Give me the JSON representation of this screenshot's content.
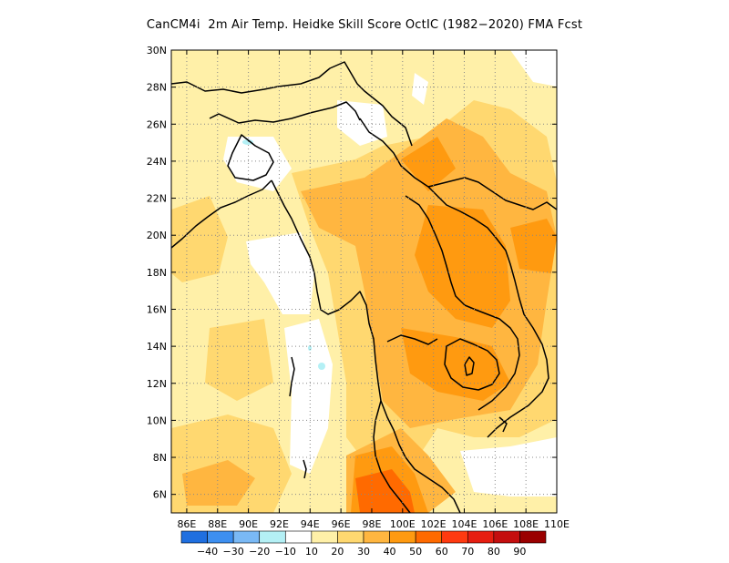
{
  "title": "CanCM4i  2m Air Temp. Heidke Skill Score OctIC (1982−2020) FMA Fcst",
  "map": {
    "lon_range": [
      85,
      110
    ],
    "lat_range": [
      5,
      30
    ],
    "x_ticks": [
      "86E",
      "88E",
      "90E",
      "92E",
      "94E",
      "96E",
      "98E",
      "100E",
      "102E",
      "104E",
      "106E",
      "108E",
      "110E"
    ],
    "y_ticks": [
      "30N",
      "28N",
      "26N",
      "24N",
      "22N",
      "20N",
      "18N",
      "16N",
      "14N",
      "12N",
      "10N",
      "8N",
      "6N"
    ],
    "gridlines": "dotted"
  },
  "colorbar": {
    "colors": [
      "#1f6fe0",
      "#3d8ff0",
      "#7ab9f5",
      "#b4f0f5",
      "#ffffff",
      "#fff0a8",
      "#ffd870",
      "#ffb640",
      "#ff9a10",
      "#ff6a00",
      "#ff3a10",
      "#e61e10",
      "#c40e0e",
      "#9a0000"
    ],
    "labels": [
      "−40",
      "−30",
      "−20",
      "−10",
      "10",
      "20",
      "30",
      "40",
      "50",
      "60",
      "70",
      "80",
      "90"
    ]
  },
  "colors": {
    "light": "#fff0a8",
    "medium": "#ffd870",
    "strong": "#ffb640",
    "deep": "#ff9a10",
    "peak": "#ff6a00",
    "negative": "#b4f0f5"
  }
}
